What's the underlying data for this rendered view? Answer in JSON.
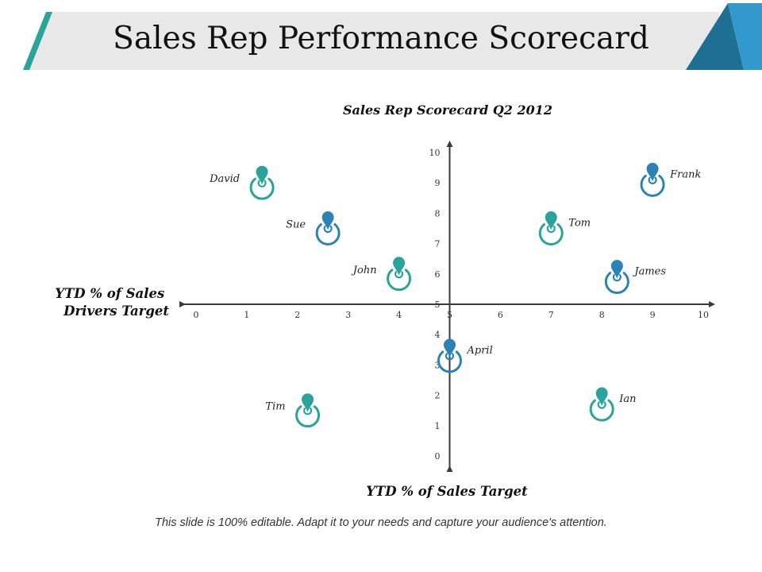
{
  "page_title": "Sales Rep Performance Scorecard",
  "caption": "This slide is 100% editable. Adapt it to your needs and capture your audience's attention.",
  "colors": {
    "accent_green": "#2aa39a",
    "accent_blue": "#2b83b5",
    "banner_gray": "#e8e8e8",
    "corner_dark": "#1f6f93",
    "corner_light": "#3399cc"
  },
  "chart_data": {
    "type": "scatter",
    "title": "Sales Rep Scorecard Q2 2012",
    "xlabel": "YTD % of Sales Target",
    "ylabel_lines": [
      "YTD % of Sales",
      "Drivers Target"
    ],
    "xlim": [
      0,
      10
    ],
    "ylim": [
      0,
      10
    ],
    "x_ticks": [
      "0",
      "1",
      "2",
      "3",
      "4",
      "5",
      "6",
      "7",
      "8",
      "9",
      "10"
    ],
    "y_ticks": [
      "0",
      "1",
      "2",
      "3",
      "4",
      "5",
      "6",
      "7",
      "8",
      "9",
      "10"
    ],
    "points": [
      {
        "name": "David",
        "x": 1.3,
        "y": 9.0,
        "color": "#2aa39a"
      },
      {
        "name": "Sue",
        "x": 2.6,
        "y": 7.5,
        "color": "#2b83b5"
      },
      {
        "name": "John",
        "x": 4.0,
        "y": 6.0,
        "color": "#2aa39a"
      },
      {
        "name": "Tom",
        "x": 7.0,
        "y": 7.5,
        "color": "#2aa39a"
      },
      {
        "name": "Frank",
        "x": 9.0,
        "y": 9.1,
        "color": "#2b83b5"
      },
      {
        "name": "James",
        "x": 8.3,
        "y": 5.9,
        "color": "#2b83b5"
      },
      {
        "name": "April",
        "x": 5.0,
        "y": 3.3,
        "color": "#2b83b5"
      },
      {
        "name": "Tim",
        "x": 2.2,
        "y": 1.5,
        "color": "#2aa39a"
      },
      {
        "name": "Ian",
        "x": 8.0,
        "y": 1.7,
        "color": "#2aa39a"
      }
    ]
  }
}
